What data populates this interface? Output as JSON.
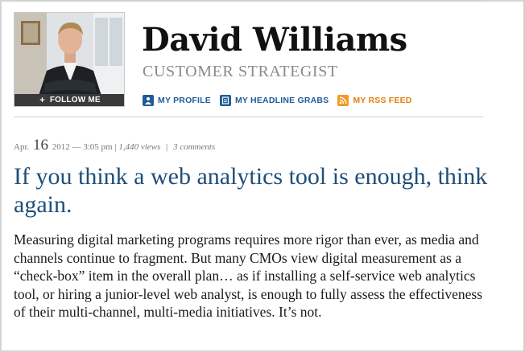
{
  "author": {
    "name": "David Williams",
    "title": "CUSTOMER STRATEGIST",
    "follow_label": "FOLLOW ME",
    "follow_icon": "plus-icon"
  },
  "profile_links": [
    {
      "label": "MY PROFILE",
      "icon": "profile-icon",
      "color": "#1f5c99"
    },
    {
      "label": "MY HEADLINE GRABS",
      "icon": "headline-grabs-icon",
      "color": "#1f5c99"
    },
    {
      "label": "MY RSS FEED",
      "icon": "rss-icon",
      "color": "#f29a27"
    }
  ],
  "post": {
    "month": "Apr.",
    "day": "16",
    "year": "2012",
    "time": "— 3:05 pm |",
    "views": "1,440 views",
    "divider": "|",
    "comments": "3 comments",
    "headline": "If you think a web analytics tool is enough, think again.",
    "body": "Measuring digital marketing programs requires more rigor than ever, as media and channels continue to fragment.  But many CMOs view digital measurement as a “check-box” item in the overall plan… as if installing a self-service web analytics tool, or hiring a junior-level web analyst, is enough to fully assess the effectiveness of their multi-channel, multi-media initiatives. It’s not."
  },
  "colors": {
    "headline": "#1f4e79",
    "link": "#1f5c99",
    "rss": "#f29a27",
    "follow_bar": "#3a3a3a"
  }
}
